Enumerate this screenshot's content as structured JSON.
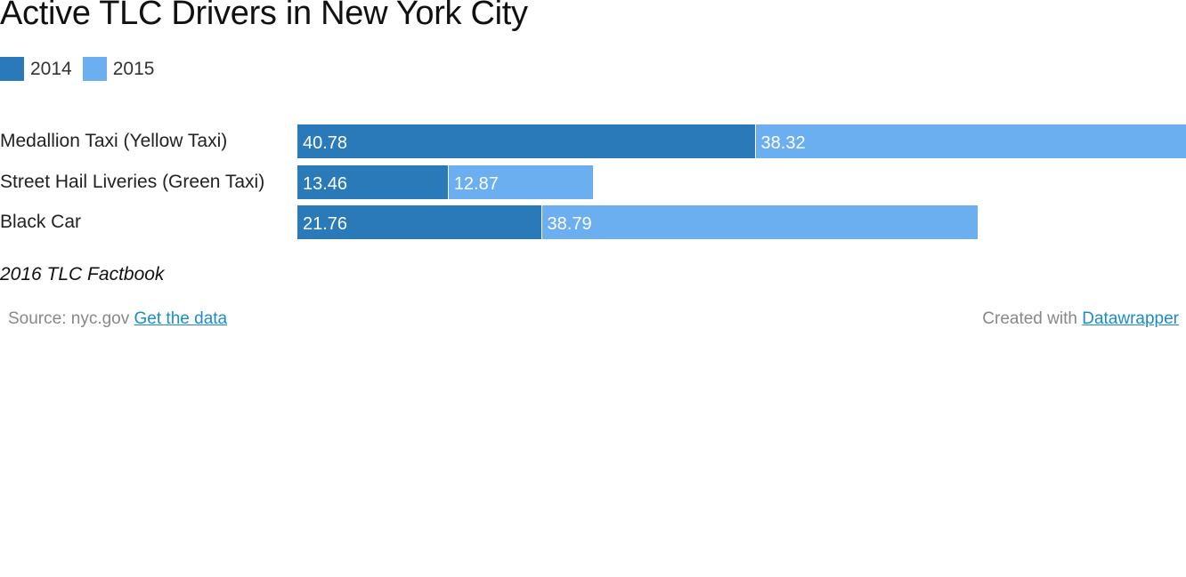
{
  "title": "Active TLC Drivers in New York City",
  "legend": [
    {
      "label": "2014",
      "color": "#2a7ab9"
    },
    {
      "label": "2015",
      "color": "#6caff0"
    }
  ],
  "note": "2016 TLC Factbook",
  "footer": {
    "source_label": "Source: nyc.gov",
    "get_data_link": "Get the data",
    "created_with_label": "Created with",
    "datawrapper_link": "Datawrapper"
  },
  "chart_data": {
    "type": "bar",
    "orientation": "horizontal",
    "stacked": true,
    "categories": [
      "Medallion Taxi (Yellow Taxi)",
      "Street Hail Liveries (Green Taxi)",
      "Black Car"
    ],
    "series": [
      {
        "name": "2014",
        "color": "#2a7ab9",
        "values": [
          40.78,
          13.46,
          21.76
        ],
        "labels": [
          "40.78",
          "13.46",
          "21.76"
        ]
      },
      {
        "name": "2015",
        "color": "#6caff0",
        "values": [
          38.32,
          12.87,
          38.79
        ],
        "labels": [
          "38.32",
          "12.87",
          "38.79"
        ]
      }
    ],
    "xlim": [
      0,
      79.1
    ],
    "legend_position": "top-left",
    "grid": false
  }
}
